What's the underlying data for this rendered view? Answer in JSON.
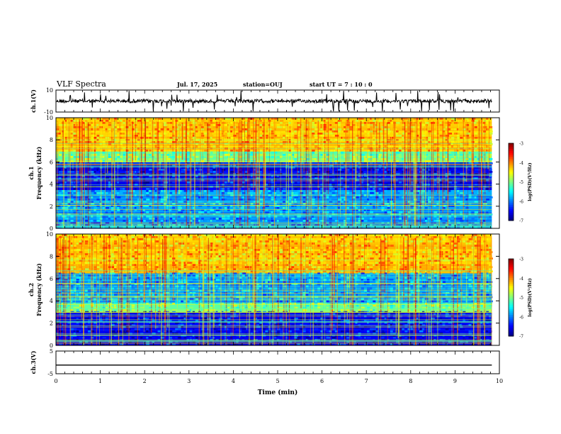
{
  "header": {
    "title": "VLF Spectra",
    "date": "Jul. 17, 2025",
    "station": "station=OUJ",
    "start_time": "start UT =  7 : 10 : 0"
  },
  "chart_data": {
    "type": "heatmap",
    "title": "VLF Spectra",
    "xlabel": "Time (min)",
    "xlim": [
      0,
      10
    ],
    "x_ticks": [
      "0",
      "1",
      "2",
      "3",
      "4",
      "5",
      "6",
      "7",
      "8",
      "9",
      "10"
    ],
    "data_end_min": 9.83,
    "panels": [
      {
        "id": "ch1-waveform",
        "type": "line",
        "ylabel": "ch.1(V)",
        "ylim": [
          -10,
          10
        ],
        "y_ticks": [
          "10",
          "-10"
        ],
        "baseline": 0
      },
      {
        "id": "ch1-spectrogram",
        "type": "heatmap",
        "ylabel": "ch.1 Frequency (kHz)",
        "ylim": [
          0,
          10
        ],
        "y_ticks": [
          "0",
          "2",
          "4",
          "6",
          "8",
          "10"
        ],
        "colorbar": {
          "label": "log(PSD)(V²/Hz)",
          "range": [
            -7,
            -3
          ],
          "ticks": [
            "-3",
            "-4",
            "-5",
            "-6",
            "-7"
          ]
        },
        "bands": [
          {
            "from_khz": 7.0,
            "to_khz": 10.0,
            "level": "high (yellow-red)"
          },
          {
            "from_khz": 6.0,
            "to_khz": 7.0,
            "level": "medium (cyan-green)"
          },
          {
            "from_khz": 3.5,
            "to_khz": 6.0,
            "level": "low (dark blue)"
          },
          {
            "from_khz": 0.0,
            "to_khz": 3.5,
            "level": "low-medium (blue-cyan)"
          }
        ]
      },
      {
        "id": "ch2-spectrogram",
        "type": "heatmap",
        "ylabel": "ch.2 Frequency (kHz)",
        "ylim": [
          0,
          10
        ],
        "y_ticks": [
          "0",
          "2",
          "4",
          "6",
          "8",
          "10"
        ],
        "colorbar": {
          "label": "log(PSD)(V²/Hz)",
          "range": [
            -7,
            -3
          ],
          "ticks": [
            "-3",
            "-4",
            "-5",
            "-6",
            "-7"
          ]
        },
        "bands": [
          {
            "from_khz": 6.5,
            "to_khz": 10.0,
            "level": "high (yellow-red)"
          },
          {
            "from_khz": 3.8,
            "to_khz": 6.5,
            "level": "low-medium (blue)"
          },
          {
            "from_khz": 3.0,
            "to_khz": 3.8,
            "level": "medium (cyan-green)"
          },
          {
            "from_khz": 0.0,
            "to_khz": 3.0,
            "level": "low (blue)"
          }
        ]
      },
      {
        "id": "ch3-waveform",
        "type": "line",
        "ylabel": "ch.3(V)",
        "ylim": [
          -5,
          5
        ],
        "y_ticks": [
          "5",
          "-5"
        ],
        "baseline": -1.2
      }
    ]
  }
}
